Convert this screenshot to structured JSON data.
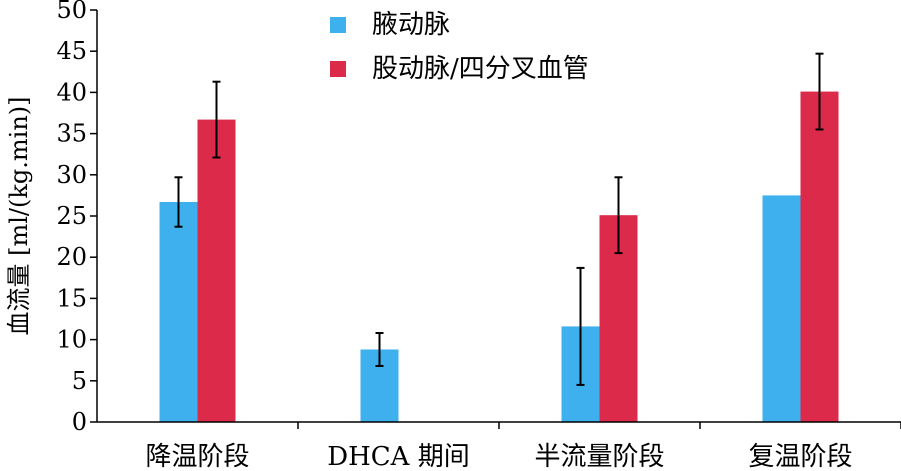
{
  "chart_data": {
    "type": "bar",
    "title": "",
    "xlabel": "",
    "ylabel": "血流量 [ml/(kg.min)]",
    "ylim": [
      0,
      50
    ],
    "yticks": [
      0,
      5,
      10,
      15,
      20,
      25,
      30,
      35,
      40,
      45,
      50
    ],
    "grid": false,
    "legend_position": "top-center",
    "categories": [
      "降温阶段",
      "DHCA 期间",
      "半流量阶段",
      "复温阶段"
    ],
    "series": [
      {
        "name": "腋动脉",
        "color": "#3fb0ee",
        "values": [
          26.7,
          8.8,
          11.6,
          27.5
        ],
        "error": [
          3.0,
          2.0,
          7.1,
          null
        ]
      },
      {
        "name": "股动脉/四分叉血管",
        "color": "#dc2a4a",
        "values": [
          36.7,
          null,
          25.1,
          40.1
        ],
        "error": [
          4.6,
          null,
          4.6,
          4.6
        ]
      }
    ]
  }
}
